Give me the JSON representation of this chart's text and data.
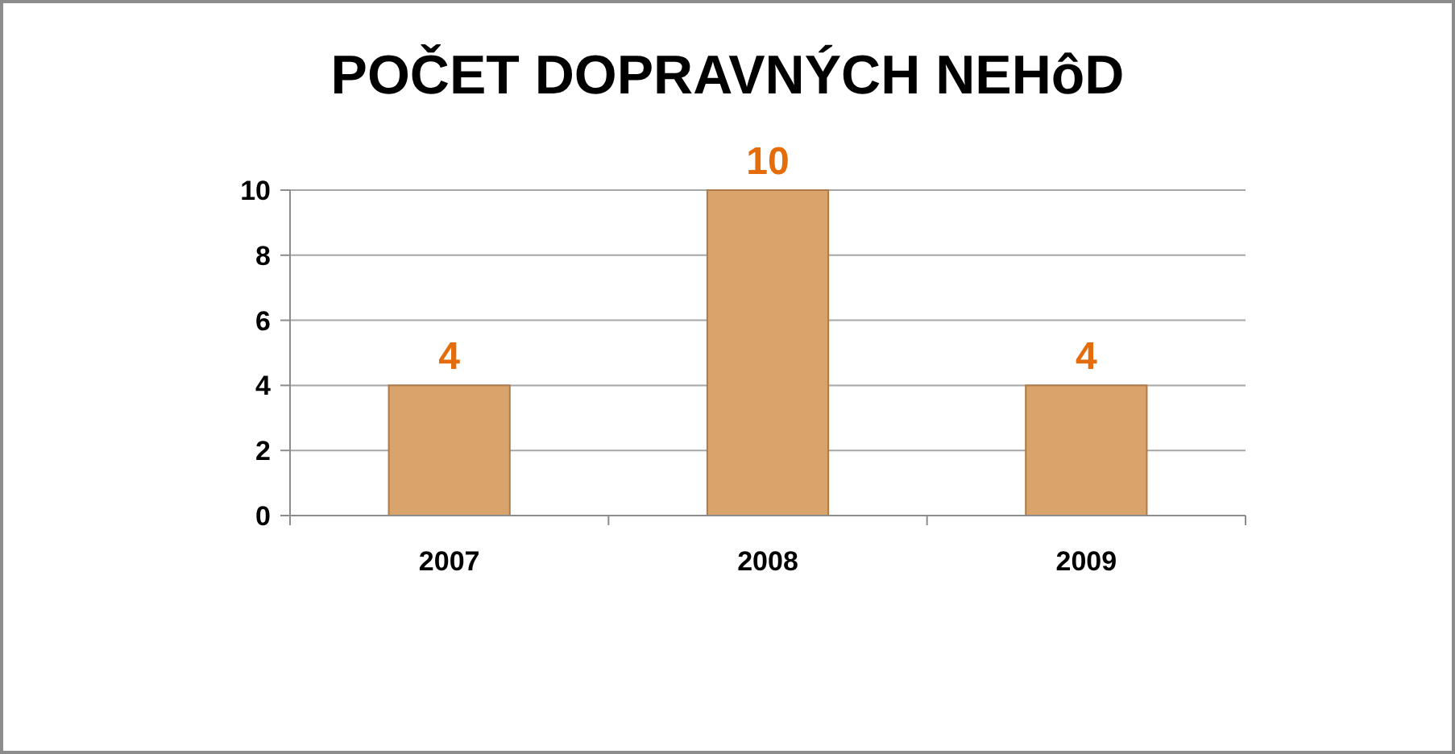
{
  "chart_data": {
    "type": "bar",
    "title": "POČET DOPRAVNÝCH NEHôD",
    "categories": [
      "2007",
      "2008",
      "2009"
    ],
    "values": [
      4,
      10,
      4
    ],
    "color": "#d9a36c",
    "ylim": [
      0,
      10
    ],
    "yticks": [
      0,
      2,
      4,
      6,
      8,
      10
    ],
    "grid": "y",
    "data_labels": true
  }
}
